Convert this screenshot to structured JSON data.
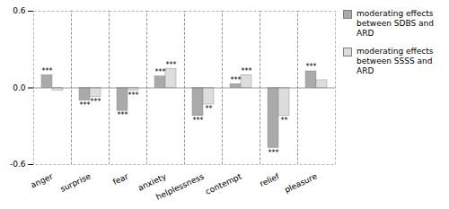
{
  "chart_data": {
    "type": "bar",
    "categories": [
      "anger",
      "surprise",
      "fear",
      "anxiety",
      "helplessness",
      "contempt",
      "relief",
      "pleasure"
    ],
    "series": [
      {
        "name": "moderating effects\nbetween SDBS and\nARD",
        "color": "#aaaaaa",
        "values": [
          0.1,
          -0.1,
          -0.18,
          0.09,
          -0.22,
          0.03,
          -0.47,
          0.13
        ],
        "annotations": [
          "***",
          "***",
          "***",
          "***",
          "***",
          "***",
          "***",
          "***"
        ]
      },
      {
        "name": "moderating effects\nbetween SSSS and\nARD",
        "color": "#dddddd",
        "values": [
          -0.02,
          -0.07,
          -0.02,
          0.15,
          -0.13,
          0.1,
          -0.22,
          0.06
        ],
        "annotations": [
          null,
          "***",
          "***",
          "***",
          "**",
          "***",
          "**",
          null
        ]
      }
    ],
    "ylim": [
      -0.6,
      0.6
    ],
    "yticks": [
      -0.6,
      {
        "value": 0,
        "label": "0.0"
      },
      0.6
    ],
    "legend": "right"
  }
}
